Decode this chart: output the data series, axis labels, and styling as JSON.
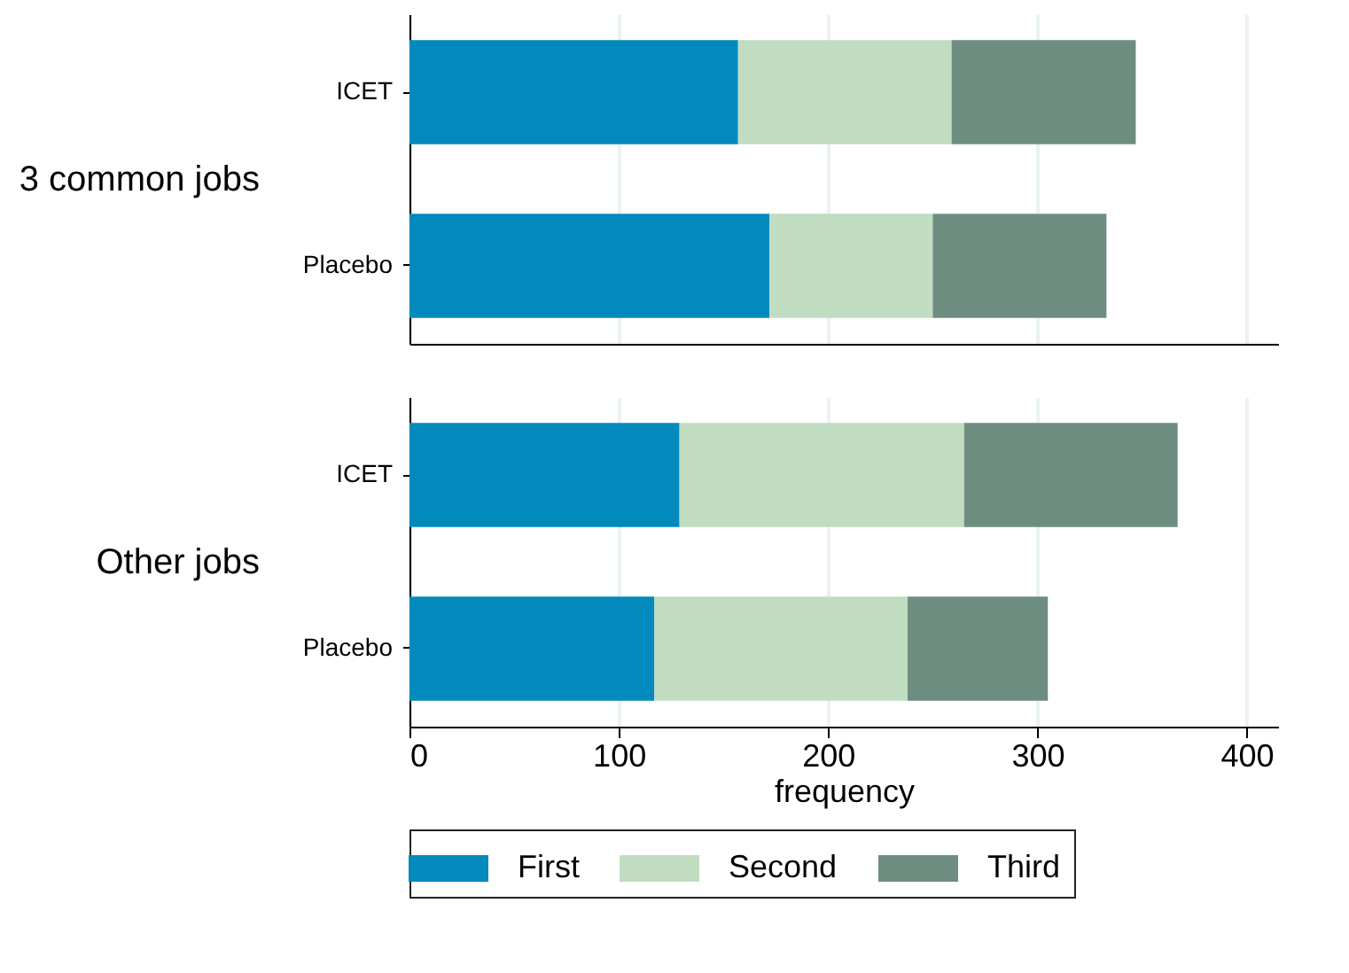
{
  "chart_data": [
    {
      "type": "bar",
      "orientation": "horizontal",
      "stacked": true,
      "ylabel": "3 common jobs",
      "categories": [
        "ICET",
        "Placebo"
      ],
      "series": [
        {
          "name": "First",
          "color": "#028abc",
          "values": [
            157,
            172
          ]
        },
        {
          "name": "Second",
          "color": "#c0dcc1",
          "values": [
            102,
            78
          ]
        },
        {
          "name": "Third",
          "color": "#6e8d81",
          "values": [
            88,
            83
          ]
        }
      ],
      "xlim": [
        0,
        415
      ],
      "xticks": [
        0,
        100,
        200,
        300,
        400
      ],
      "grid": "x",
      "tick_labels": "y",
      "legend": "bottom"
    },
    {
      "type": "bar",
      "orientation": "horizontal",
      "stacked": true,
      "ylabel": "Other jobs",
      "xlabel": "frequency",
      "categories": [
        "ICET",
        "Placebo"
      ],
      "series": [
        {
          "name": "First",
          "color": "#028abc",
          "values": [
            129,
            117
          ]
        },
        {
          "name": "Second",
          "color": "#c0dcc1",
          "values": [
            136,
            121
          ]
        },
        {
          "name": "Third",
          "color": "#6e8d81",
          "values": [
            102,
            67
          ]
        }
      ],
      "xlim": [
        0,
        415
      ],
      "xticks": [
        0,
        100,
        200,
        300,
        400
      ],
      "grid": "x",
      "legend": "bottom"
    }
  ]
}
